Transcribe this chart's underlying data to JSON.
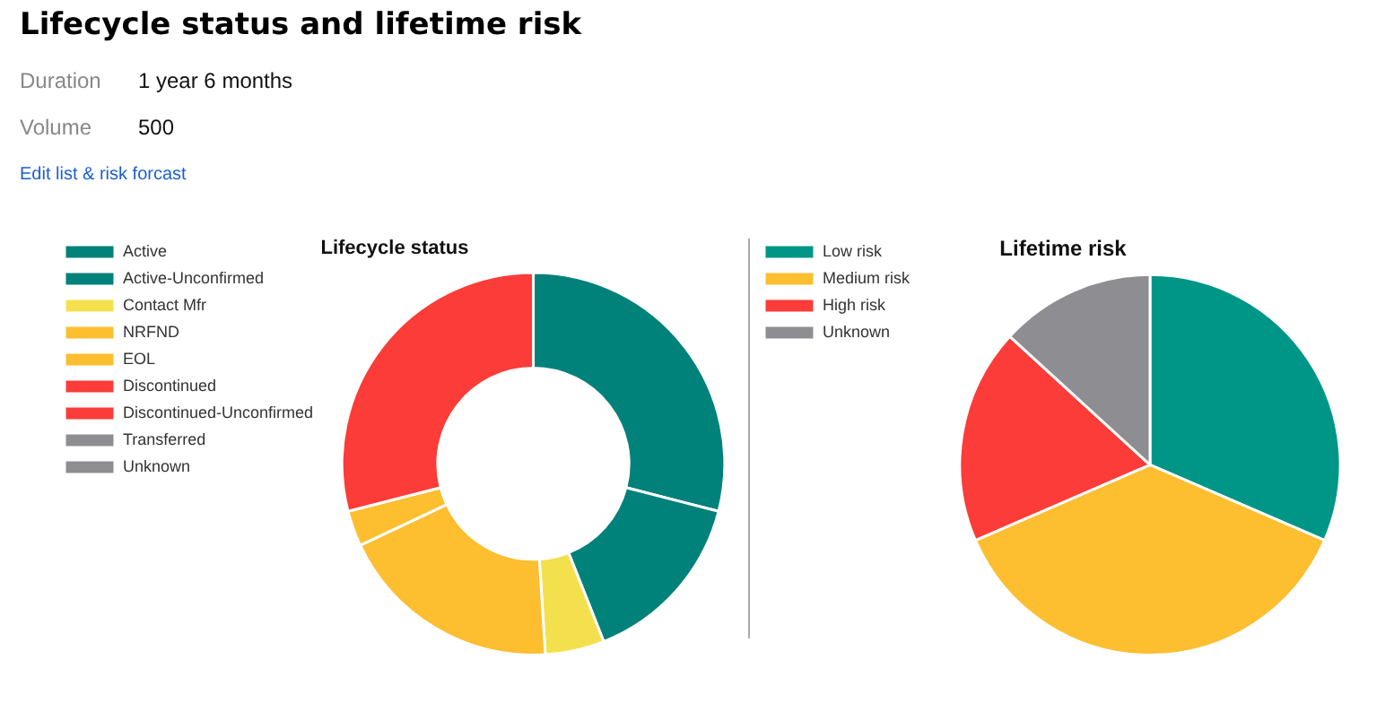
{
  "chart_data": [
    {
      "type": "donut",
      "title": "Lifecycle status",
      "annotations": [
        "Lifecycle status and lifetime risk",
        "Duration",
        "1 year 6 months",
        "Volume",
        "500",
        "Edit list & risk forcast"
      ],
      "categories": [
        "Active",
        "Active-Unconfirmed",
        "Contact Mfr",
        "NRFND",
        "EOL",
        "Discontinued",
        "Discontinued-Unconfirmed",
        "Transferred",
        "Unknown"
      ],
      "values": [
        29,
        15,
        5,
        19,
        3,
        29,
        0,
        0,
        0
      ],
      "colors": [
        "#00817a",
        "#00817a",
        "#f4e04d",
        "#fdbe2f",
        "#fdbe2f",
        "#fb3c38",
        "#fb3c38",
        "#8e8d92",
        "#8e8d92"
      ],
      "legend": "top left"
    },
    {
      "type": "pie",
      "title": "Lifetime risk",
      "categories": [
        "Low risk",
        "Medium risk",
        "High risk",
        "Unknown"
      ],
      "values": [
        31.5,
        37,
        18.3,
        13.2
      ],
      "colors": [
        "#009687",
        "#fdbe2f",
        "#fb3c38",
        "#8e8d92"
      ],
      "legend": "top left"
    }
  ]
}
